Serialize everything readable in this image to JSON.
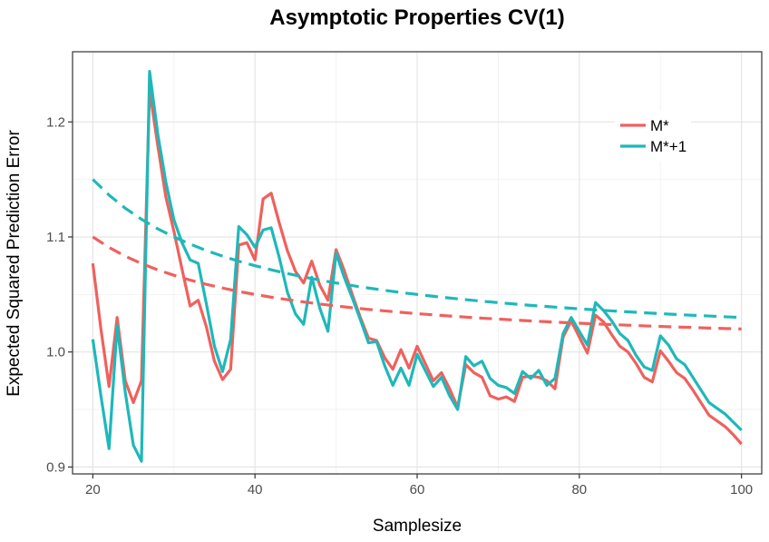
{
  "chart_data": {
    "type": "line",
    "title": "Asymptotic Properties CV(1)",
    "xlabel": "Samplesize",
    "ylabel": "Expected Squared Prediction Error",
    "xlim": [
      17.5,
      102.5
    ],
    "ylim": [
      0.894,
      1.261
    ],
    "xticks": [
      20,
      40,
      60,
      80,
      100
    ],
    "yticks": [
      0.9,
      1.0,
      1.1,
      1.2
    ],
    "grid": true,
    "legend_position": "top-right",
    "series": [
      {
        "name": "M*",
        "color": "#ef615d",
        "style": "solid",
        "x": [
          20,
          21,
          22,
          23,
          24,
          25,
          26,
          27,
          28,
          29,
          30,
          31,
          32,
          33,
          34,
          35,
          36,
          37,
          38,
          39,
          40,
          41,
          42,
          43,
          44,
          45,
          46,
          47,
          48,
          49,
          50,
          51,
          52,
          53,
          54,
          55,
          56,
          57,
          58,
          59,
          60,
          61,
          62,
          63,
          64,
          65,
          66,
          67,
          68,
          69,
          70,
          71,
          72,
          73,
          74,
          75,
          76,
          77,
          78,
          79,
          80,
          81,
          82,
          83,
          84,
          85,
          86,
          87,
          88,
          89,
          90,
          91,
          92,
          93,
          94,
          95,
          96,
          97,
          98,
          99,
          100
        ],
        "values": [
          1.077,
          1.02,
          0.97,
          1.03,
          0.975,
          0.956,
          0.975,
          1.228,
          1.18,
          1.135,
          1.105,
          1.072,
          1.04,
          1.045,
          1.022,
          0.992,
          0.976,
          0.985,
          1.093,
          1.095,
          1.08,
          1.133,
          1.138,
          1.112,
          1.088,
          1.07,
          1.06,
          1.079,
          1.058,
          1.045,
          1.089,
          1.071,
          1.05,
          1.03,
          1.012,
          1.01,
          0.995,
          0.985,
          1.002,
          0.986,
          1.005,
          0.99,
          0.975,
          0.982,
          0.968,
          0.952,
          0.989,
          0.982,
          0.978,
          0.962,
          0.959,
          0.961,
          0.957,
          0.978,
          0.979,
          0.978,
          0.975,
          0.968,
          1.013,
          1.027,
          1.013,
          0.999,
          1.032,
          1.026,
          1.015,
          1.005,
          1.0,
          0.99,
          0.978,
          0.974,
          1.001,
          0.992,
          0.982,
          0.977,
          0.967,
          0.956,
          0.945,
          0.94,
          0.935,
          0.928,
          0.92
        ]
      },
      {
        "name": "M*+1",
        "color": "#1fb8b9",
        "style": "solid",
        "x": [
          20,
          21,
          22,
          23,
          24,
          25,
          26,
          27,
          28,
          29,
          30,
          31,
          32,
          33,
          34,
          35,
          36,
          37,
          38,
          39,
          40,
          41,
          42,
          43,
          44,
          45,
          46,
          47,
          48,
          49,
          50,
          51,
          52,
          53,
          54,
          55,
          56,
          57,
          58,
          59,
          60,
          61,
          62,
          63,
          64,
          65,
          66,
          67,
          68,
          69,
          70,
          71,
          72,
          73,
          74,
          75,
          76,
          77,
          78,
          79,
          80,
          81,
          82,
          83,
          84,
          85,
          86,
          87,
          88,
          89,
          90,
          91,
          92,
          93,
          94,
          95,
          96,
          97,
          98,
          99,
          100
        ],
        "values": [
          1.011,
          0.962,
          0.916,
          1.023,
          0.965,
          0.919,
          0.905,
          1.244,
          1.19,
          1.148,
          1.115,
          1.095,
          1.08,
          1.077,
          1.042,
          1.005,
          0.983,
          1.011,
          1.109,
          1.102,
          1.091,
          1.106,
          1.108,
          1.082,
          1.052,
          1.033,
          1.024,
          1.065,
          1.038,
          1.018,
          1.086,
          1.065,
          1.047,
          1.028,
          1.008,
          1.009,
          0.988,
          0.971,
          0.986,
          0.971,
          0.998,
          0.984,
          0.97,
          0.978,
          0.962,
          0.95,
          0.996,
          0.988,
          0.992,
          0.977,
          0.971,
          0.969,
          0.964,
          0.983,
          0.977,
          0.984,
          0.971,
          0.977,
          1.016,
          1.03,
          1.018,
          1.006,
          1.043,
          1.036,
          1.027,
          1.016,
          1.01,
          0.997,
          0.987,
          0.984,
          1.014,
          1.006,
          0.994,
          0.989,
          0.978,
          0.967,
          0.956,
          0.951,
          0.946,
          0.939,
          0.932
        ]
      },
      {
        "name": "",
        "color": "#ef615d",
        "style": "dashed",
        "x": [
          20,
          22,
          24,
          26,
          28,
          30,
          32,
          34,
          36,
          38,
          40,
          42,
          44,
          46,
          48,
          50,
          52,
          54,
          56,
          58,
          60,
          62,
          64,
          66,
          68,
          70,
          72,
          74,
          76,
          78,
          80,
          82,
          84,
          86,
          88,
          90,
          92,
          94,
          96,
          98,
          100
        ],
        "values": [
          1.1,
          1.0909,
          1.0833,
          1.0769,
          1.0714,
          1.0667,
          1.0625,
          1.0588,
          1.0556,
          1.0526,
          1.05,
          1.0476,
          1.0455,
          1.0435,
          1.0417,
          1.04,
          1.0385,
          1.037,
          1.0357,
          1.0345,
          1.0333,
          1.0323,
          1.0313,
          1.0303,
          1.0294,
          1.0286,
          1.0278,
          1.027,
          1.0263,
          1.0256,
          1.025,
          1.0244,
          1.0238,
          1.0233,
          1.0227,
          1.0222,
          1.0217,
          1.0213,
          1.0208,
          1.0204,
          1.02
        ]
      },
      {
        "name": "",
        "color": "#1fb8b9",
        "style": "dashed",
        "x": [
          20,
          22,
          24,
          26,
          28,
          30,
          32,
          34,
          36,
          38,
          40,
          42,
          44,
          46,
          48,
          50,
          52,
          54,
          56,
          58,
          60,
          62,
          64,
          66,
          68,
          70,
          72,
          74,
          76,
          78,
          80,
          82,
          84,
          86,
          88,
          90,
          92,
          94,
          96,
          98,
          100
        ],
        "values": [
          1.15,
          1.1364,
          1.125,
          1.1154,
          1.1071,
          1.1,
          1.0938,
          1.0882,
          1.0833,
          1.0789,
          1.075,
          1.0714,
          1.0682,
          1.0652,
          1.0625,
          1.06,
          1.0577,
          1.0556,
          1.0536,
          1.0517,
          1.05,
          1.0484,
          1.0469,
          1.0455,
          1.0441,
          1.0429,
          1.0417,
          1.0405,
          1.0395,
          1.0385,
          1.0375,
          1.0366,
          1.0357,
          1.0349,
          1.0341,
          1.0333,
          1.0326,
          1.0319,
          1.0313,
          1.0306,
          1.03
        ]
      }
    ]
  }
}
